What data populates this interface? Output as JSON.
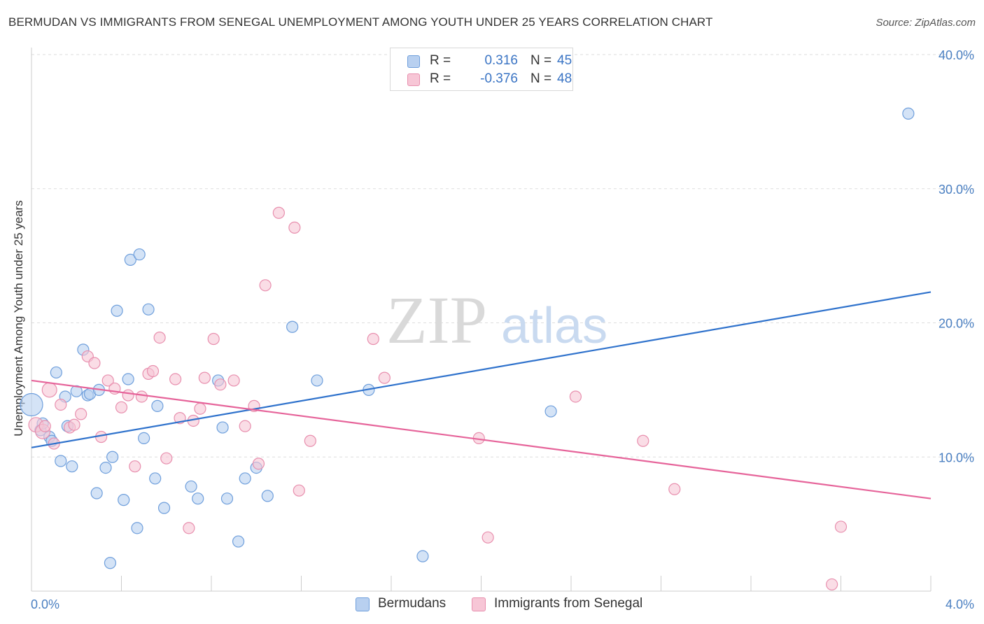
{
  "title": "BERMUDAN VS IMMIGRANTS FROM SENEGAL UNEMPLOYMENT AMONG YOUTH UNDER 25 YEARS CORRELATION CHART",
  "source": "Source: ZipAtlas.com",
  "watermark": {
    "zip": "ZIP",
    "atlas": "atlas"
  },
  "legend": {
    "rows": [
      {
        "r_label": "R =",
        "r_value": "0.316",
        "n_label": "N =",
        "n_value": "45"
      },
      {
        "r_label": "R =",
        "r_value": "-0.376",
        "n_label": "N =",
        "n_value": "48"
      }
    ]
  },
  "bottom_legend": [
    "Bermudans",
    "Immigrants from Senegal"
  ],
  "colors": {
    "blue_fill": "#b8d0f0",
    "blue_stroke": "#6f9fdc",
    "blue_line": "#2f72cc",
    "pink_fill": "#f7c6d6",
    "pink_stroke": "#e88fae",
    "pink_line": "#e6649a",
    "grid": "#dddddd",
    "tick_text": "#4a7fc1"
  },
  "chart_data": {
    "type": "scatter",
    "title": "BERMUDAN VS IMMIGRANTS FROM SENEGAL UNEMPLOYMENT AMONG YOUTH UNDER 25 YEARS CORRELATION CHART",
    "xlabel": "",
    "ylabel": "Unemployment Among Youth under 25 years",
    "xlim": [
      0,
      4.0
    ],
    "ylim": [
      0,
      40.0
    ],
    "x_tick_labels": [
      "0.0%",
      "4.0%"
    ],
    "y_ticks": [
      10,
      20,
      30,
      40
    ],
    "y_tick_labels": [
      "10.0%",
      "20.0%",
      "30.0%",
      "40.0%"
    ],
    "series": [
      {
        "name": "Bermudans",
        "r": 0.316,
        "n": 45,
        "trend": {
          "x": [
            0.0,
            4.0
          ],
          "y": [
            10.7,
            22.3
          ]
        },
        "points": [
          {
            "x": 0.0,
            "y": 13.9,
            "s": 2.0
          },
          {
            "x": 0.04,
            "y": 12.0,
            "s": 1
          },
          {
            "x": 0.05,
            "y": 12.5,
            "s": 1
          },
          {
            "x": 0.08,
            "y": 11.5,
            "s": 1
          },
          {
            "x": 0.09,
            "y": 11.2,
            "s": 1
          },
          {
            "x": 0.11,
            "y": 16.3,
            "s": 1
          },
          {
            "x": 0.13,
            "y": 9.7,
            "s": 1
          },
          {
            "x": 0.15,
            "y": 14.5,
            "s": 1
          },
          {
            "x": 0.16,
            "y": 12.3,
            "s": 1
          },
          {
            "x": 0.18,
            "y": 9.3,
            "s": 1
          },
          {
            "x": 0.2,
            "y": 14.9,
            "s": 1
          },
          {
            "x": 0.23,
            "y": 18.0,
            "s": 1
          },
          {
            "x": 0.25,
            "y": 14.6,
            "s": 1
          },
          {
            "x": 0.26,
            "y": 14.7,
            "s": 1
          },
          {
            "x": 0.29,
            "y": 7.3,
            "s": 1
          },
          {
            "x": 0.3,
            "y": 15.0,
            "s": 1
          },
          {
            "x": 0.33,
            "y": 9.2,
            "s": 1
          },
          {
            "x": 0.35,
            "y": 2.1,
            "s": 1
          },
          {
            "x": 0.36,
            "y": 10.0,
            "s": 1
          },
          {
            "x": 0.38,
            "y": 20.9,
            "s": 1
          },
          {
            "x": 0.41,
            "y": 6.8,
            "s": 1
          },
          {
            "x": 0.43,
            "y": 15.8,
            "s": 1
          },
          {
            "x": 0.44,
            "y": 24.7,
            "s": 1
          },
          {
            "x": 0.47,
            "y": 4.7,
            "s": 1
          },
          {
            "x": 0.48,
            "y": 25.1,
            "s": 1
          },
          {
            "x": 0.5,
            "y": 11.4,
            "s": 1
          },
          {
            "x": 0.52,
            "y": 21.0,
            "s": 1
          },
          {
            "x": 0.55,
            "y": 8.4,
            "s": 1
          },
          {
            "x": 0.56,
            "y": 13.8,
            "s": 1
          },
          {
            "x": 0.59,
            "y": 6.2,
            "s": 1
          },
          {
            "x": 0.71,
            "y": 7.8,
            "s": 1
          },
          {
            "x": 0.74,
            "y": 6.9,
            "s": 1
          },
          {
            "x": 0.83,
            "y": 15.7,
            "s": 1
          },
          {
            "x": 0.85,
            "y": 12.2,
            "s": 1
          },
          {
            "x": 0.87,
            "y": 6.9,
            "s": 1
          },
          {
            "x": 0.92,
            "y": 3.7,
            "s": 1
          },
          {
            "x": 0.95,
            "y": 8.4,
            "s": 1
          },
          {
            "x": 1.0,
            "y": 9.2,
            "s": 1
          },
          {
            "x": 1.05,
            "y": 7.1,
            "s": 1
          },
          {
            "x": 1.16,
            "y": 19.7,
            "s": 1
          },
          {
            "x": 1.27,
            "y": 15.7,
            "s": 1
          },
          {
            "x": 1.5,
            "y": 15.0,
            "s": 1
          },
          {
            "x": 1.74,
            "y": 2.6,
            "s": 1
          },
          {
            "x": 2.31,
            "y": 13.4,
            "s": 1
          },
          {
            "x": 3.9,
            "y": 35.6,
            "s": 1
          }
        ]
      },
      {
        "name": "Immigrants from Senegal",
        "r": -0.376,
        "n": 48,
        "trend": {
          "x": [
            0.0,
            4.0
          ],
          "y": [
            15.7,
            6.9
          ]
        },
        "points": [
          {
            "x": 0.02,
            "y": 12.4,
            "s": 1.3
          },
          {
            "x": 0.05,
            "y": 11.9,
            "s": 1.3
          },
          {
            "x": 0.06,
            "y": 12.3,
            "s": 1
          },
          {
            "x": 0.08,
            "y": 15.0,
            "s": 1.3
          },
          {
            "x": 0.1,
            "y": 11.0,
            "s": 1
          },
          {
            "x": 0.13,
            "y": 13.9,
            "s": 1
          },
          {
            "x": 0.17,
            "y": 12.2,
            "s": 1
          },
          {
            "x": 0.19,
            "y": 12.4,
            "s": 1
          },
          {
            "x": 0.22,
            "y": 13.2,
            "s": 1
          },
          {
            "x": 0.25,
            "y": 17.5,
            "s": 1
          },
          {
            "x": 0.28,
            "y": 17.0,
            "s": 1
          },
          {
            "x": 0.31,
            "y": 11.5,
            "s": 1
          },
          {
            "x": 0.34,
            "y": 15.7,
            "s": 1
          },
          {
            "x": 0.37,
            "y": 15.1,
            "s": 1
          },
          {
            "x": 0.4,
            "y": 13.7,
            "s": 1
          },
          {
            "x": 0.43,
            "y": 14.6,
            "s": 1
          },
          {
            "x": 0.46,
            "y": 9.3,
            "s": 1
          },
          {
            "x": 0.49,
            "y": 14.5,
            "s": 1
          },
          {
            "x": 0.52,
            "y": 16.2,
            "s": 1
          },
          {
            "x": 0.54,
            "y": 16.4,
            "s": 1
          },
          {
            "x": 0.57,
            "y": 18.9,
            "s": 1
          },
          {
            "x": 0.6,
            "y": 9.9,
            "s": 1
          },
          {
            "x": 0.64,
            "y": 15.8,
            "s": 1
          },
          {
            "x": 0.66,
            "y": 12.9,
            "s": 1
          },
          {
            "x": 0.7,
            "y": 4.7,
            "s": 1
          },
          {
            "x": 0.72,
            "y": 12.7,
            "s": 1
          },
          {
            "x": 0.75,
            "y": 13.6,
            "s": 1
          },
          {
            "x": 0.77,
            "y": 15.9,
            "s": 1
          },
          {
            "x": 0.81,
            "y": 18.8,
            "s": 1
          },
          {
            "x": 0.84,
            "y": 15.4,
            "s": 1
          },
          {
            "x": 0.9,
            "y": 15.7,
            "s": 1
          },
          {
            "x": 0.95,
            "y": 12.3,
            "s": 1
          },
          {
            "x": 0.99,
            "y": 13.8,
            "s": 1
          },
          {
            "x": 1.01,
            "y": 9.5,
            "s": 1
          },
          {
            "x": 1.04,
            "y": 22.8,
            "s": 1
          },
          {
            "x": 1.1,
            "y": 28.2,
            "s": 1
          },
          {
            "x": 1.17,
            "y": 27.1,
            "s": 1
          },
          {
            "x": 1.19,
            "y": 7.5,
            "s": 1
          },
          {
            "x": 1.24,
            "y": 11.2,
            "s": 1
          },
          {
            "x": 1.52,
            "y": 18.8,
            "s": 1
          },
          {
            "x": 1.57,
            "y": 15.9,
            "s": 1
          },
          {
            "x": 1.99,
            "y": 11.4,
            "s": 1
          },
          {
            "x": 2.03,
            "y": 4.0,
            "s": 1
          },
          {
            "x": 2.42,
            "y": 14.5,
            "s": 1
          },
          {
            "x": 2.72,
            "y": 11.2,
            "s": 1
          },
          {
            "x": 2.86,
            "y": 7.6,
            "s": 1
          },
          {
            "x": 3.56,
            "y": 0.5,
            "s": 1
          },
          {
            "x": 3.6,
            "y": 4.8,
            "s": 1
          }
        ]
      }
    ]
  }
}
